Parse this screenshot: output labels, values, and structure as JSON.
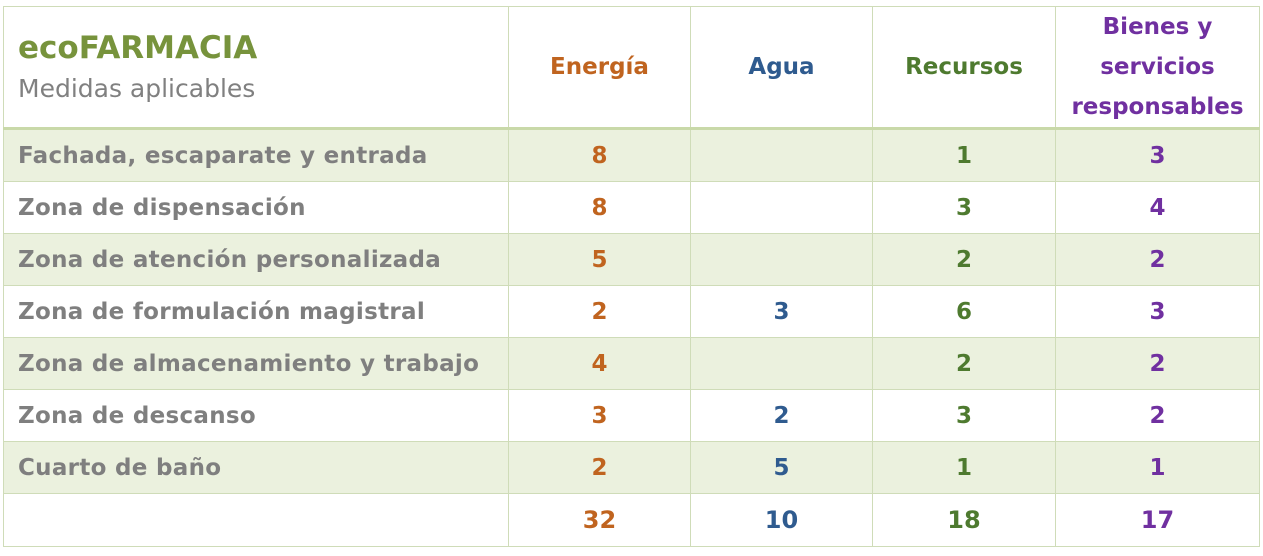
{
  "header": {
    "title": "ecoFARMACIA",
    "subtitle": "Medidas aplicables",
    "columns": [
      "Energía",
      "Agua",
      "Recursos",
      "Bienes y servicios responsables"
    ]
  },
  "rows": [
    {
      "label": "Fachada, escaparate y entrada",
      "energia": "8",
      "agua": "",
      "recursos": "1",
      "bienes": "3"
    },
    {
      "label": "Zona de dispensación",
      "energia": "8",
      "agua": "",
      "recursos": "3",
      "bienes": "4"
    },
    {
      "label": "Zona de atención personalizada",
      "energia": "5",
      "agua": "",
      "recursos": "2",
      "bienes": "2"
    },
    {
      "label": "Zona de formulación magistral",
      "energia": "2",
      "agua": "3",
      "recursos": "6",
      "bienes": "3"
    },
    {
      "label": "Zona de almacenamiento y trabajo",
      "energia": "4",
      "agua": "",
      "recursos": "2",
      "bienes": "2"
    },
    {
      "label": "Zona de descanso",
      "energia": "3",
      "agua": "2",
      "recursos": "3",
      "bienes": "2"
    },
    {
      "label": "Cuarto de baño",
      "energia": "2",
      "agua": "5",
      "recursos": "1",
      "bienes": "1"
    }
  ],
  "totals": {
    "energia": "32",
    "agua": "10",
    "recursos": "18",
    "bienes": "17"
  },
  "colors": {
    "title_green": "#77933c",
    "energia": "#c0641f",
    "agua": "#2f5b8f",
    "recursos": "#4e7a2f",
    "bienes": "#7030a0",
    "row_shade": "#ebf1de"
  }
}
